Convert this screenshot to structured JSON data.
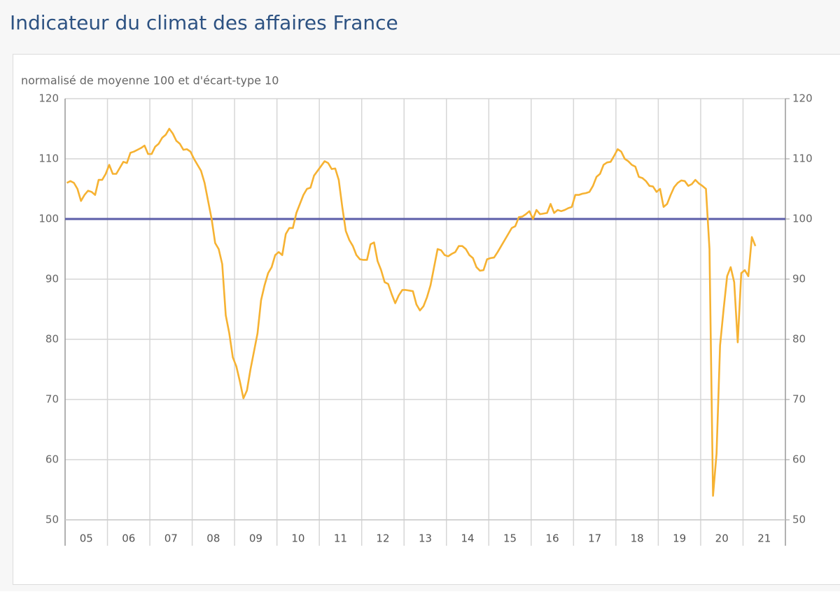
{
  "chart_data": {
    "type": "line",
    "title": "Indicateur du climat des affaires France",
    "subtitle": "normalisé de moyenne 100 et d'écart-type 10",
    "categories": [
      null,
      null,
      null,
      null,
      null,
      null,
      "05",
      null,
      null,
      null,
      null,
      null,
      null,
      null,
      null,
      null,
      null,
      null,
      "06",
      null,
      null,
      null,
      null,
      null,
      null,
      null,
      null,
      null,
      null,
      null,
      "07",
      null,
      null,
      null,
      null,
      null,
      null,
      null,
      null,
      null,
      null,
      null,
      "08",
      null,
      null,
      null,
      null,
      null,
      null,
      null,
      null,
      null,
      null,
      null,
      "09",
      null,
      null,
      null,
      null,
      null,
      null,
      null,
      null,
      null,
      null,
      null,
      "10",
      null,
      null,
      null,
      null,
      null,
      null,
      null,
      null,
      null,
      null,
      null,
      "11",
      null,
      null,
      null,
      null,
      null,
      null,
      null,
      null,
      null,
      null,
      null,
      "12",
      null,
      null,
      null,
      null,
      null,
      null,
      null,
      null,
      null,
      null,
      null,
      "13",
      null,
      null,
      null,
      null,
      null,
      null,
      null,
      null,
      null,
      null,
      null,
      "14",
      null,
      null,
      null,
      null,
      null,
      null,
      null,
      null,
      null,
      null,
      null,
      "15",
      null,
      null,
      null,
      null,
      null,
      null,
      null,
      null,
      null,
      null,
      null,
      "16",
      null,
      null,
      null,
      null,
      null,
      null,
      null,
      null,
      null,
      null,
      null,
      "17",
      null,
      null,
      null,
      null,
      null,
      null,
      null,
      null,
      null,
      null,
      null,
      "18",
      null,
      null,
      null,
      null,
      null,
      null,
      null,
      null,
      null,
      null,
      null,
      "19",
      null,
      null,
      null,
      null,
      null,
      null,
      null,
      null,
      null,
      null,
      null,
      "20",
      null,
      null,
      null,
      null,
      null,
      null,
      null,
      null,
      null,
      null,
      null,
      "21",
      null,
      null,
      null,
      null,
      null
    ],
    "values": [
      106,
      106.3,
      106,
      105,
      103,
      104,
      104.7,
      104.5,
      104,
      106.5,
      106.5,
      107.5,
      109,
      107.5,
      107.5,
      108.5,
      109.5,
      109.3,
      111,
      111.2,
      111.5,
      111.8,
      112.2,
      110.8,
      110.8,
      112,
      112.5,
      113.5,
      114,
      115,
      114.2,
      113,
      112.5,
      111.5,
      111.6,
      111.2,
      110,
      109,
      108,
      106,
      103,
      100,
      96,
      95,
      92.5,
      84,
      81,
      77,
      75.5,
      73,
      70.2,
      71.5,
      75,
      78,
      81,
      86.5,
      89,
      91,
      92,
      94,
      94.5,
      94,
      97.5,
      98.5,
      98.5,
      101,
      102.5,
      104,
      105,
      105.2,
      107.2,
      108,
      108.8,
      109.6,
      109.3,
      108.3,
      108.4,
      106.5,
      102,
      98,
      96.5,
      95.5,
      94,
      93.3,
      93.2,
      93.2,
      95.8,
      96.1,
      93,
      91.5,
      89.5,
      89.2,
      87.5,
      86,
      87.3,
      88.2,
      88.2,
      88.1,
      88,
      85.8,
      84.8,
      85.5,
      87,
      89,
      92,
      95,
      94.8,
      94,
      93.8,
      94.2,
      94.5,
      95.5,
      95.5,
      95,
      94,
      93.5,
      92,
      91.4,
      91.5,
      93.3,
      93.5,
      93.6,
      94.5,
      95.5,
      96.5,
      97.5,
      98.5,
      98.8,
      100.3,
      100.4,
      100.8,
      101.3,
      100,
      101.5,
      100.8,
      100.9,
      101,
      102.5,
      101,
      101.5,
      101.3,
      101.5,
      101.8,
      102,
      104,
      104,
      104.2,
      104.3,
      104.5,
      105.5,
      107,
      107.5,
      109,
      109.4,
      109.5,
      110.5,
      111.6,
      111.2,
      110,
      109.6,
      109,
      108.7,
      107,
      106.8,
      106.3,
      105.5,
      105.4,
      104.5,
      105,
      102,
      102.5,
      104,
      105.3,
      106,
      106.4,
      106.3,
      105.5,
      105.8,
      106.5,
      105.9,
      105.5,
      105,
      95,
      54,
      61,
      79,
      85,
      90.5,
      92,
      89.5,
      79.5,
      91,
      91.5,
      90.5,
      97,
      95.5,
      null,
      null,
      null,
      null,
      null,
      null,
      null,
      null
    ],
    "color": "#f6b232",
    "reference_line": {
      "value": 100,
      "color": "#5b5ea8"
    },
    "ylim": [
      50,
      120
    ],
    "yticks": [
      50,
      60,
      70,
      80,
      90,
      100,
      110,
      120
    ],
    "grid": true
  }
}
